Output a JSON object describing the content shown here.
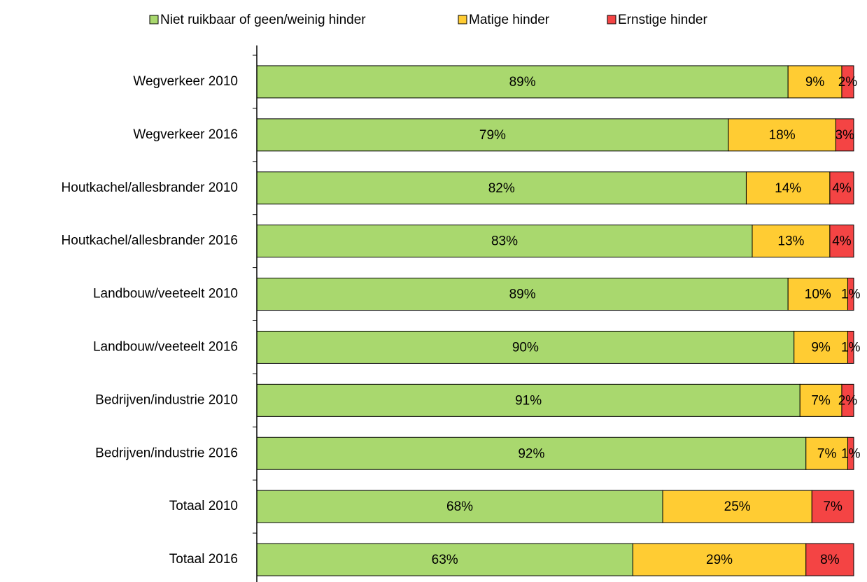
{
  "chart_data": {
    "type": "stacked_barh",
    "categories": [
      "Wegverkeer 2010",
      "Wegverkeer 2016",
      "Houtkachel/allesbrander 2010",
      "Houtkachel/allesbrander 2016",
      "Landbouw/veeteelt 2010",
      "Landbouw/veeteelt 2016",
      "Bedrijven/industrie 2010",
      "Bedrijven/industrie 2016",
      "Totaal 2010",
      "Totaal 2016"
    ],
    "series": [
      {
        "name": "Niet ruikbaar of geen/weinig hinder",
        "color": "#a9d86e",
        "values": [
          89,
          79,
          82,
          83,
          89,
          90,
          91,
          92,
          68,
          63
        ],
        "value_labels": [
          "89%",
          "79%",
          "82%",
          "83%",
          "89%",
          "90%",
          "91%",
          "92%",
          "68%",
          "63%"
        ]
      },
      {
        "name": "Matige hinder",
        "color": "#ffcc33",
        "values": [
          9,
          18,
          14,
          13,
          10,
          9,
          7,
          7,
          25,
          29
        ],
        "value_labels": [
          "9%",
          "18%",
          "14%",
          "13%",
          "10%",
          "9%",
          "7%",
          "7%",
          "25%",
          "29%"
        ]
      },
      {
        "name": "Ernstige hinder",
        "color": "#f44444",
        "values": [
          2,
          3,
          4,
          4,
          1,
          1,
          2,
          1,
          7,
          8
        ],
        "value_labels": [
          "2%",
          "3%",
          "4%",
          "4%",
          "1%",
          "1%",
          "2%",
          "1%",
          "7%",
          "8%"
        ]
      }
    ],
    "xlim": [
      0,
      100
    ],
    "legend": "top"
  }
}
